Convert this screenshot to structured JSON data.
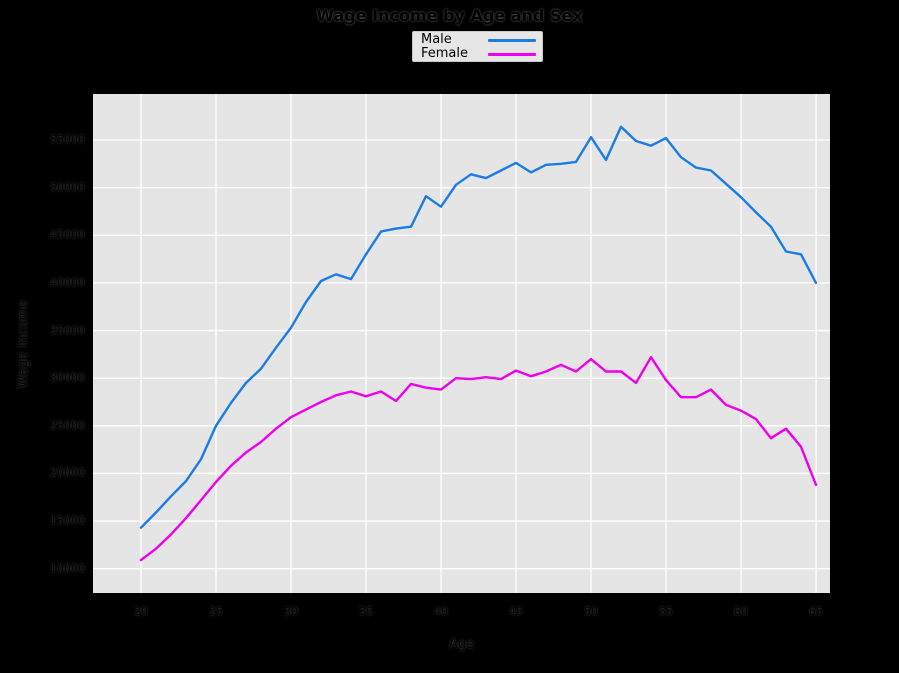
{
  "figure": {
    "background": "#000000"
  },
  "legend": {
    "background": "#e6e6e6",
    "items": [
      {
        "label": "Male",
        "color": "#1b7ce6"
      },
      {
        "label": "Female",
        "color": "#ee00ee"
      }
    ]
  },
  "chart_data": {
    "type": "line",
    "title": "Wage Income by Age and Sex",
    "xlabel": "Age",
    "ylabel": "Wage Income",
    "x": [
      20,
      21,
      22,
      23,
      24,
      25,
      26,
      27,
      28,
      29,
      30,
      31,
      32,
      33,
      34,
      35,
      36,
      37,
      38,
      39,
      40,
      41,
      42,
      43,
      44,
      45,
      46,
      47,
      48,
      49,
      50,
      51,
      52,
      53,
      54,
      55,
      56,
      57,
      58,
      59,
      60,
      61,
      62,
      63,
      64,
      65
    ],
    "series": [
      {
        "name": "Male",
        "color": "#1b7ce6",
        "values": [
          14300,
          15900,
          17600,
          19200,
          21500,
          25000,
          27400,
          29500,
          31000,
          33200,
          35300,
          38000,
          40200,
          40900,
          40400,
          43000,
          45400,
          45700,
          45900,
          49100,
          48000,
          50300,
          51400,
          51000,
          51800,
          52600,
          51600,
          52400,
          52500,
          52700,
          55300,
          52900,
          56400,
          54900,
          54400,
          55200,
          53200,
          52100,
          51800,
          50400,
          49000,
          47400,
          45900,
          43300,
          43000,
          40000
        ]
      },
      {
        "name": "Female",
        "color": "#ee00ee",
        "values": [
          10900,
          12100,
          13600,
          15300,
          17200,
          19100,
          20800,
          22200,
          23300,
          24700,
          25900,
          26700,
          27500,
          28200,
          28600,
          28100,
          28600,
          27600,
          29400,
          29000,
          28800,
          30000,
          29900,
          30100,
          29900,
          30800,
          30200,
          30700,
          31400,
          30700,
          32000,
          30700,
          30700,
          29500,
          32200,
          29800,
          28000,
          28000,
          28800,
          27200,
          26600,
          25700,
          23700,
          24700,
          22800,
          18800
        ]
      }
    ],
    "xlim": [
      16.8,
      65.93
    ],
    "ylim": [
      7450,
      59830
    ],
    "xticks": [
      20,
      25,
      30,
      35,
      40,
      45,
      50,
      55,
      60,
      65
    ],
    "yticks": [
      10000,
      15000,
      20000,
      25000,
      30000,
      35000,
      40000,
      45000,
      50000,
      55000
    ],
    "grid": true,
    "grid_color": "#ffffff",
    "plot_background": "#e5e5e5",
    "legend_position": "top-center-outside"
  }
}
